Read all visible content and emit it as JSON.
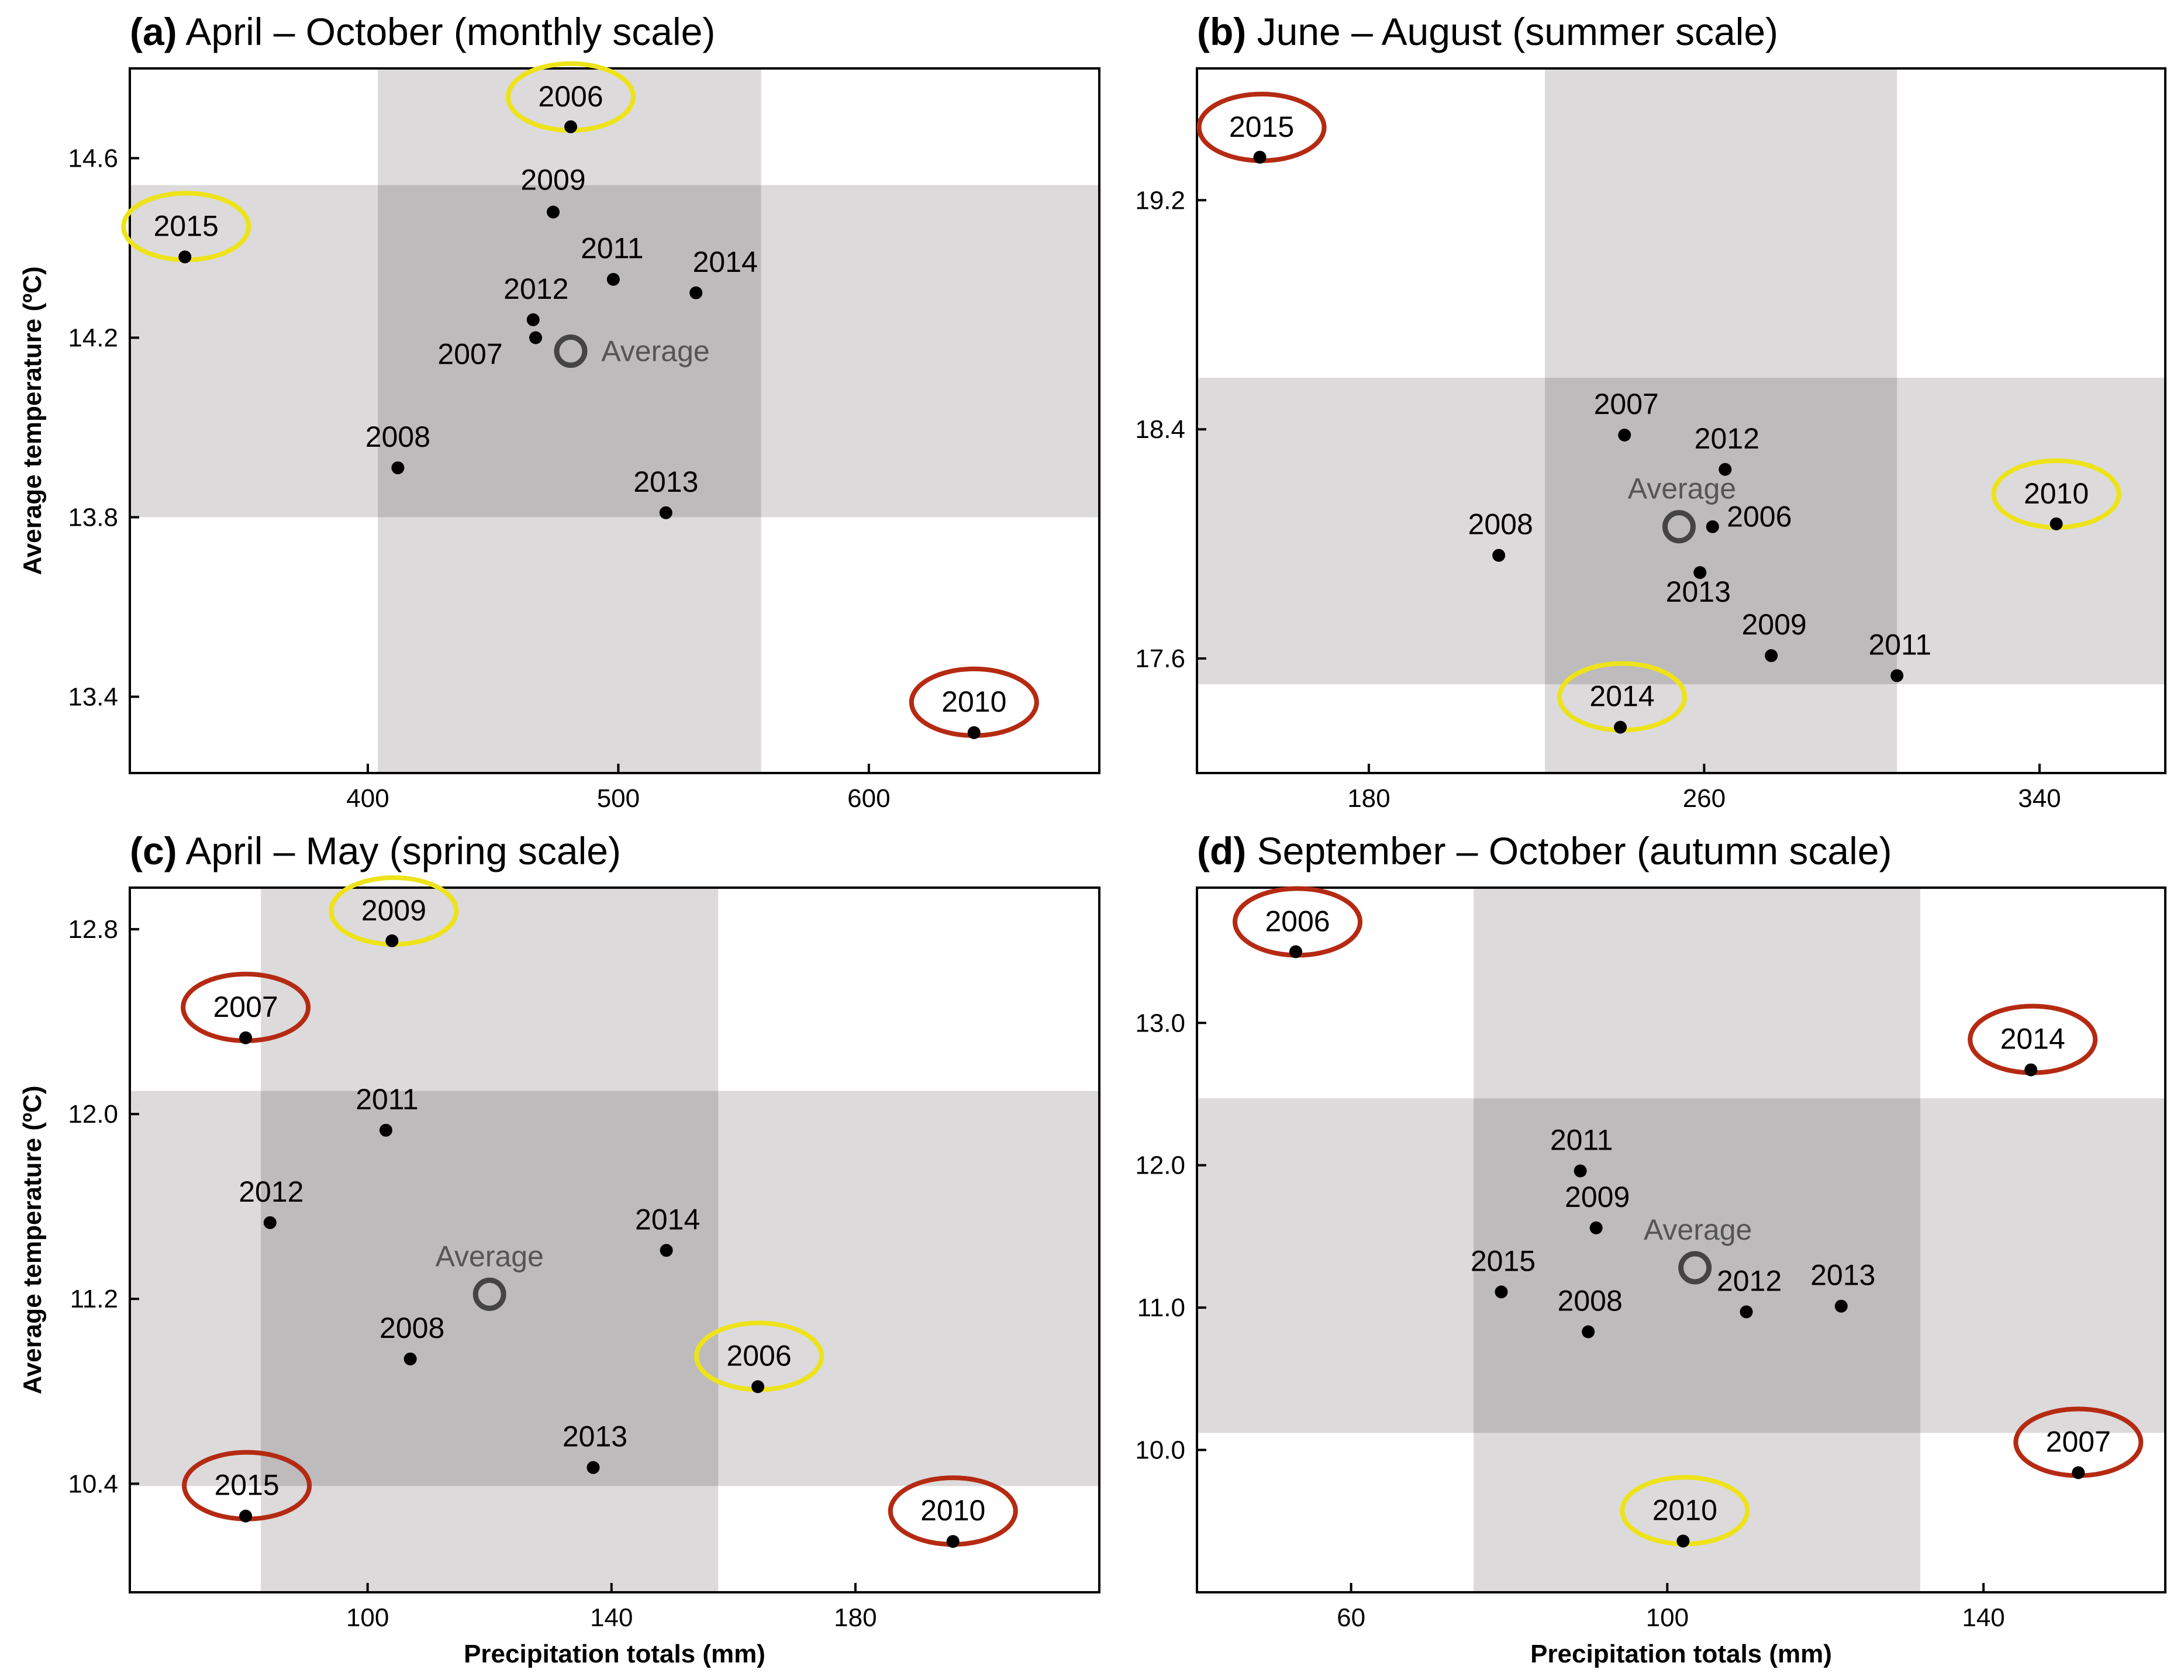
{
  "chart_data": [
    {
      "type": "scatter",
      "panel": "(a)",
      "title": "April – October (monthly scale)",
      "xlabel": "",
      "ylabel": "Average temperature (ºC)",
      "xlim": [
        305,
        692
      ],
      "ylim": [
        13.23,
        14.8
      ],
      "xticks": [
        400,
        500,
        600
      ],
      "xtick_labels": [
        "400",
        "500",
        "600"
      ],
      "yticks": [
        13.4,
        13.8,
        14.2,
        14.6
      ],
      "ytick_labels": [
        "13.4",
        "13.8",
        "14.2",
        "14.6"
      ],
      "band_x": [
        404,
        557
      ],
      "band_y": [
        13.8,
        14.54
      ],
      "points": [
        {
          "year": "2006",
          "x": 481,
          "y": 14.67,
          "circle": "yellow"
        },
        {
          "year": "2009",
          "x": 474,
          "y": 14.48
        },
        {
          "year": "2015",
          "x": 327,
          "y": 14.38,
          "circle": "yellow"
        },
        {
          "year": "2011",
          "x": 498,
          "y": 14.33
        },
        {
          "year": "2014",
          "x": 531,
          "y": 14.3
        },
        {
          "year": "2012",
          "x": 466,
          "y": 14.24
        },
        {
          "year": "2007",
          "x": 467,
          "y": 14.2
        },
        {
          "year": "2008",
          "x": 412,
          "y": 13.91
        },
        {
          "year": "2013",
          "x": 519,
          "y": 13.81
        },
        {
          "year": "2010",
          "x": 642,
          "y": 13.32,
          "circle": "red"
        }
      ],
      "average": {
        "label": "Average",
        "x": 481,
        "y": 14.17
      }
    },
    {
      "type": "scatter",
      "panel": "(b)",
      "title": "June – August (summer scale)",
      "xlabel": "",
      "ylabel": "",
      "xlim": [
        139,
        370
      ],
      "ylim": [
        17.2,
        19.66
      ],
      "xticks": [
        180,
        260,
        340
      ],
      "xtick_labels": [
        "180",
        "260",
        "340"
      ],
      "yticks": [
        17.6,
        18.4,
        19.2
      ],
      "ytick_labels": [
        "17.6",
        "18.4",
        "19.2"
      ],
      "band_x": [
        222,
        306
      ],
      "band_y": [
        17.51,
        18.58
      ],
      "points": [
        {
          "year": "2015",
          "x": 154,
          "y": 19.35,
          "circle": "red"
        },
        {
          "year": "2007",
          "x": 241,
          "y": 18.38
        },
        {
          "year": "2012",
          "x": 265,
          "y": 18.26
        },
        {
          "year": "2006",
          "x": 262,
          "y": 18.06
        },
        {
          "year": "2010",
          "x": 344,
          "y": 18.07,
          "circle": "yellow"
        },
        {
          "year": "2008",
          "x": 211,
          "y": 17.96
        },
        {
          "year": "2013",
          "x": 259,
          "y": 17.9
        },
        {
          "year": "2009",
          "x": 276,
          "y": 17.61
        },
        {
          "year": "2011",
          "x": 306,
          "y": 17.54
        },
        {
          "year": "2014",
          "x": 240,
          "y": 17.36,
          "circle": "yellow"
        }
      ],
      "average": {
        "label": "Average",
        "x": 254,
        "y": 18.06
      }
    },
    {
      "type": "scatter",
      "panel": "(c)",
      "title": "April – May (spring scale)",
      "xlabel": "Precipitation totals (mm)",
      "ylabel": "Average temperature (ºC)",
      "xlim": [
        61,
        220
      ],
      "ylim": [
        9.93,
        12.98
      ],
      "xticks": [
        100,
        140,
        180
      ],
      "xtick_labels": [
        "100",
        "140",
        "180"
      ],
      "yticks": [
        10.4,
        11.2,
        12.0,
        12.8
      ],
      "ytick_labels": [
        "10.4",
        "11.2",
        "12.0",
        "12.8"
      ],
      "band_x": [
        82.5,
        157.5
      ],
      "band_y": [
        10.39,
        12.1
      ],
      "points": [
        {
          "year": "2009",
          "x": 104,
          "y": 12.75,
          "circle": "yellow"
        },
        {
          "year": "2007",
          "x": 80,
          "y": 12.33,
          "circle": "red"
        },
        {
          "year": "2011",
          "x": 103,
          "y": 11.93
        },
        {
          "year": "2012",
          "x": 84,
          "y": 11.53
        },
        {
          "year": "2014",
          "x": 149,
          "y": 11.41
        },
        {
          "year": "2008",
          "x": 107,
          "y": 10.94
        },
        {
          "year": "2006",
          "x": 164,
          "y": 10.82,
          "circle": "yellow"
        },
        {
          "year": "2013",
          "x": 137,
          "y": 10.47
        },
        {
          "year": "2015",
          "x": 80,
          "y": 10.26,
          "circle": "red"
        },
        {
          "year": "2010",
          "x": 196,
          "y": 10.15,
          "circle": "red"
        }
      ],
      "average": {
        "label": "Average",
        "x": 120,
        "y": 11.22
      }
    },
    {
      "type": "scatter",
      "panel": "(d)",
      "title": "September – October (autumn scale)",
      "xlabel": "Precipitation totals (mm)",
      "ylabel": "",
      "xlim": [
        40.5,
        163
      ],
      "ylim": [
        9.0,
        13.95
      ],
      "xticks": [
        60,
        100,
        140
      ],
      "xtick_labels": [
        "60",
        "100",
        "140"
      ],
      "yticks": [
        10.0,
        11.0,
        12.0,
        13.0
      ],
      "ytick_labels": [
        "10.0",
        "11.0",
        "12.0",
        "13.0"
      ],
      "band_x": [
        75.5,
        132
      ],
      "band_y": [
        10.12,
        12.47
      ],
      "points": [
        {
          "year": "2006",
          "x": 53,
          "y": 13.5,
          "circle": "red"
        },
        {
          "year": "2014",
          "x": 146,
          "y": 12.67,
          "circle": "red"
        },
        {
          "year": "2011",
          "x": 89,
          "y": 11.96
        },
        {
          "year": "2009",
          "x": 91,
          "y": 11.56
        },
        {
          "year": "2015",
          "x": 79,
          "y": 11.11
        },
        {
          "year": "2012",
          "x": 110,
          "y": 10.97
        },
        {
          "year": "2013",
          "x": 122,
          "y": 11.01
        },
        {
          "year": "2008",
          "x": 90,
          "y": 10.83
        },
        {
          "year": "2007",
          "x": 152,
          "y": 9.84,
          "circle": "red"
        },
        {
          "year": "2010",
          "x": 102,
          "y": 9.36,
          "circle": "yellow"
        }
      ],
      "average": {
        "label": "Average",
        "x": 103.5,
        "y": 11.28
      }
    }
  ],
  "colors": {
    "outer_band": "#dcdadb",
    "inner_band": "#bdbbbc",
    "point": "#000000",
    "average_ring": "#444444",
    "average_text": "#555555",
    "circle_red": "#b52a12",
    "circle_yellow": "#eee31a"
  }
}
